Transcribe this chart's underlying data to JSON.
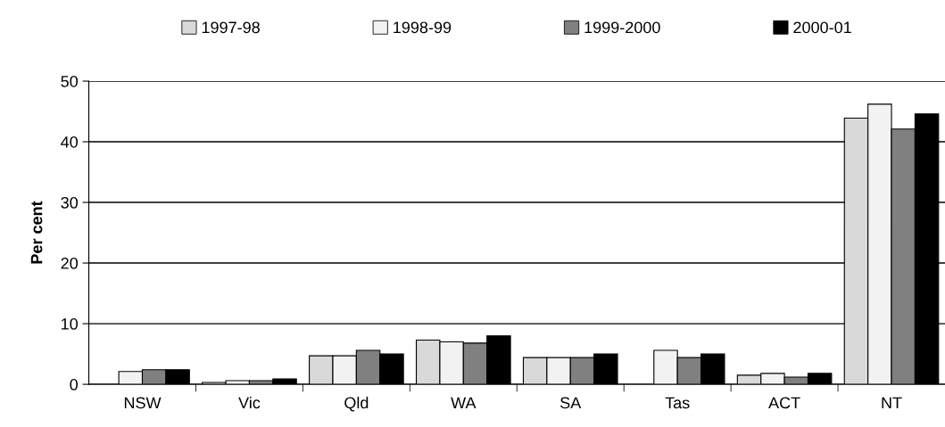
{
  "chart_data": {
    "type": "bar",
    "ylabel": "Per cent",
    "categories": [
      "NSW",
      "Vic",
      "Qld",
      "WA",
      "SA",
      "Tas",
      "ACT",
      "NT"
    ],
    "series": [
      {
        "name": "1997-98",
        "color": "#d9d9d9",
        "values": [
          null,
          0.3,
          4.7,
          7.3,
          4.4,
          null,
          1.5,
          43.9
        ]
      },
      {
        "name": "1998-99",
        "color": "#f2f2f2",
        "values": [
          2.1,
          0.6,
          4.7,
          7.0,
          4.4,
          5.6,
          1.8,
          46.2
        ]
      },
      {
        "name": "1999-2000",
        "color": "#808080",
        "values": [
          2.4,
          0.6,
          5.6,
          6.8,
          4.4,
          4.4,
          1.2,
          42.1
        ]
      },
      {
        "name": "2000-01",
        "color": "#000000",
        "values": [
          2.4,
          0.9,
          5.0,
          8.0,
          5.0,
          5.0,
          1.8,
          44.6
        ]
      }
    ],
    "ylim": [
      0,
      50
    ],
    "yticks": [
      0,
      10,
      20,
      30,
      40,
      50
    ],
    "grid": "y",
    "legend": "top"
  }
}
